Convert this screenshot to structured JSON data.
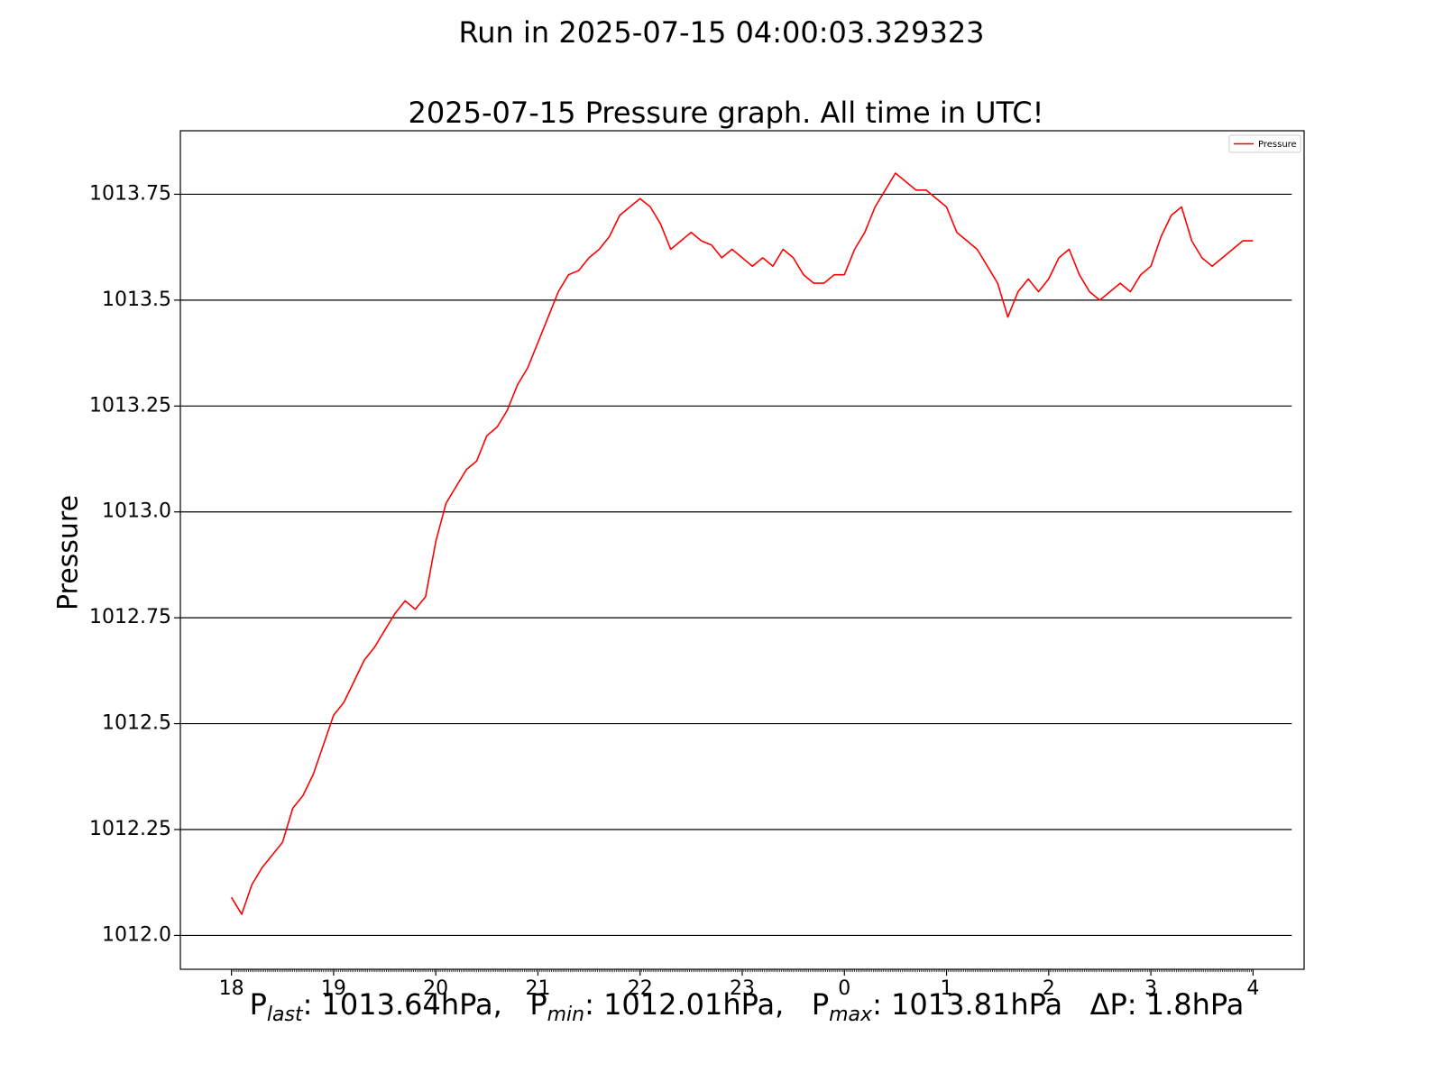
{
  "suptitle": "Run in 2025-07-15 04:00:03.329323",
  "chart_data": {
    "type": "line",
    "title": "2025-07-15 Pressure graph. All time in UTC!",
    "xlabel_parts": {
      "p_last_base": "P",
      "p_last_sub": "last",
      "p_last_value": ": 1013.64hPa,",
      "p_min_base": "P",
      "p_min_sub": "min",
      "p_min_value": ": 1012.01hPa,",
      "p_max_base": "P",
      "p_max_sub": "max",
      "p_max_value": ": 1013.81hPa",
      "delta": "ΔP: 1.8hPa"
    },
    "ylabel": "Pressure",
    "xlim": [
      -0.5,
      10.5
    ],
    "ylim": [
      1011.92,
      1013.9
    ],
    "x_ticks": [
      0,
      1,
      2,
      3,
      4,
      5,
      6,
      7,
      8,
      9,
      10
    ],
    "x_tick_labels": [
      "18",
      "19",
      "20",
      "21",
      "22",
      "23",
      "0",
      "1",
      "2",
      "3",
      "4"
    ],
    "y_ticks": [
      1012.0,
      1012.25,
      1012.5,
      1012.75,
      1013.0,
      1013.25,
      1013.5,
      1013.75
    ],
    "y_tick_labels": [
      "1012.0",
      "1012.25",
      "1012.5",
      "1012.75",
      "1013.0",
      "1013.25",
      "1013.5",
      "1013.75"
    ],
    "grid": "horizontal",
    "legend": {
      "position": "top-right",
      "label": "Pressure"
    },
    "series": [
      {
        "name": "Pressure",
        "color": "#ff0000",
        "x": [
          0,
          0.1,
          0.2,
          0.3,
          0.4,
          0.5,
          0.6,
          0.7,
          0.8,
          0.9,
          1.0,
          1.1,
          1.2,
          1.3,
          1.4,
          1.5,
          1.6,
          1.7,
          1.8,
          1.9,
          2.0,
          2.1,
          2.2,
          2.3,
          2.4,
          2.5,
          2.6,
          2.7,
          2.8,
          2.9,
          3.0,
          3.1,
          3.2,
          3.3,
          3.4,
          3.5,
          3.6,
          3.7,
          3.8,
          3.9,
          4.0,
          4.1,
          4.2,
          4.3,
          4.4,
          4.5,
          4.6,
          4.7,
          4.8,
          4.9,
          5.0,
          5.1,
          5.2,
          5.3,
          5.4,
          5.5,
          5.6,
          5.7,
          5.8,
          5.9,
          6.0,
          6.1,
          6.2,
          6.3,
          6.4,
          6.5,
          6.6,
          6.7,
          6.8,
          6.9,
          7.0,
          7.1,
          7.2,
          7.3,
          7.4,
          7.5,
          7.6,
          7.7,
          7.8,
          7.9,
          8.0,
          8.1,
          8.2,
          8.3,
          8.4,
          8.5,
          8.6,
          8.7,
          8.8,
          8.9,
          9.0,
          9.1,
          9.2,
          9.3,
          9.4,
          9.5,
          9.6,
          9.7,
          9.8,
          9.9,
          10.0
        ],
        "y": [
          1012.09,
          1012.05,
          1012.12,
          1012.16,
          1012.19,
          1012.22,
          1012.3,
          1012.33,
          1012.38,
          1012.45,
          1012.52,
          1012.55,
          1012.6,
          1012.65,
          1012.68,
          1012.72,
          1012.76,
          1012.79,
          1012.77,
          1012.8,
          1012.93,
          1013.02,
          1013.06,
          1013.1,
          1013.12,
          1013.18,
          1013.2,
          1013.24,
          1013.3,
          1013.34,
          1013.4,
          1013.46,
          1013.52,
          1013.56,
          1013.57,
          1013.6,
          1013.62,
          1013.65,
          1013.7,
          1013.72,
          1013.74,
          1013.72,
          1013.68,
          1013.62,
          1013.64,
          1013.66,
          1013.64,
          1013.63,
          1013.6,
          1013.62,
          1013.6,
          1013.58,
          1013.6,
          1013.58,
          1013.62,
          1013.6,
          1013.56,
          1013.54,
          1013.54,
          1013.56,
          1013.56,
          1013.62,
          1013.66,
          1013.72,
          1013.76,
          1013.8,
          1013.78,
          1013.76,
          1013.76,
          1013.74,
          1013.72,
          1013.66,
          1013.64,
          1013.62,
          1013.58,
          1013.54,
          1013.46,
          1013.52,
          1013.55,
          1013.52,
          1013.55,
          1013.6,
          1013.62,
          1013.56,
          1013.52,
          1013.5,
          1013.52,
          1013.54,
          1013.52,
          1013.56,
          1013.58,
          1013.65,
          1013.7,
          1013.72,
          1013.64,
          1013.6,
          1013.58,
          1013.6,
          1013.62,
          1013.64,
          1013.64
        ]
      }
    ]
  }
}
